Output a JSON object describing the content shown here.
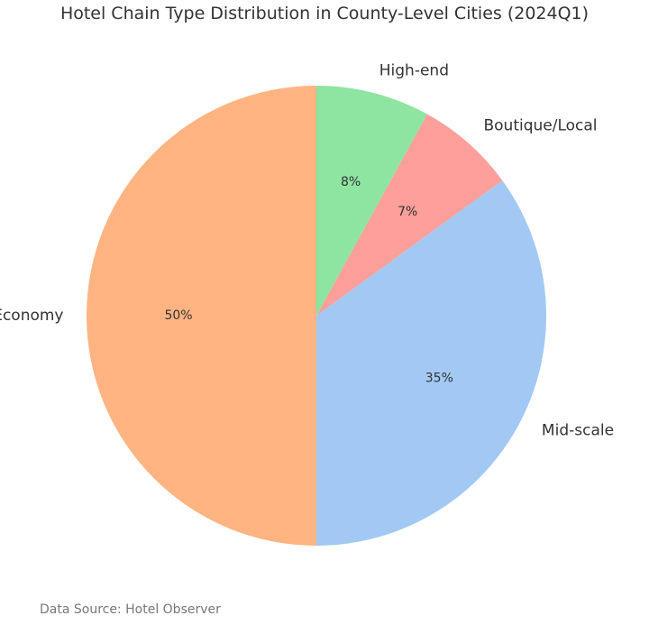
{
  "chart_data": {
    "type": "pie",
    "title": "Hotel Chain Type Distribution in County-Level Cities (2024Q1)",
    "categories": [
      "Economy",
      "Mid-scale",
      "Boutique/Local",
      "High-end"
    ],
    "values": [
      50,
      35,
      7,
      8
    ],
    "value_labels": [
      "50%",
      "35%",
      "7%",
      "8%"
    ],
    "colors": [
      "#FFB482",
      "#A1C9F4",
      "#FF9F9B",
      "#8DE5A1"
    ],
    "start_angle_deg": 90,
    "direction": "counterclockwise"
  },
  "footer": {
    "source": "Data Source: Hotel Observer"
  }
}
